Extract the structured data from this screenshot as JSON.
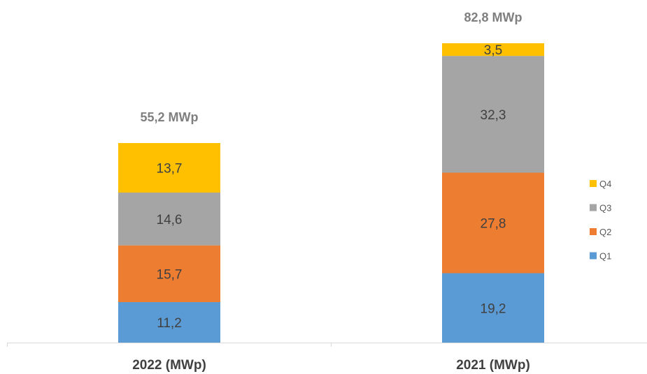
{
  "chart_data": {
    "type": "bar",
    "stacked": true,
    "categories": [
      "2022 (MWp)",
      "2021 (MWp)"
    ],
    "series": [
      {
        "name": "Q1",
        "color": "#5b9bd5",
        "values": [
          11.2,
          19.2
        ],
        "labels": [
          "11,2",
          "19,2"
        ]
      },
      {
        "name": "Q2",
        "color": "#ed7d31",
        "values": [
          15.7,
          27.8
        ],
        "labels": [
          "15,7",
          "27,8"
        ]
      },
      {
        "name": "Q3",
        "color": "#a5a5a5",
        "values": [
          14.6,
          32.3
        ],
        "labels": [
          "14,6",
          "32,3"
        ]
      },
      {
        "name": "Q4",
        "color": "#ffc000",
        "values": [
          13.7,
          3.5
        ],
        "labels": [
          "13,7",
          "3,5"
        ]
      }
    ],
    "totals": [
      "55,2 MWp",
      "82,8 MWp"
    ],
    "legend": {
      "position": "right",
      "order": [
        "Q4",
        "Q3",
        "Q2",
        "Q1"
      ]
    },
    "grid": false
  }
}
